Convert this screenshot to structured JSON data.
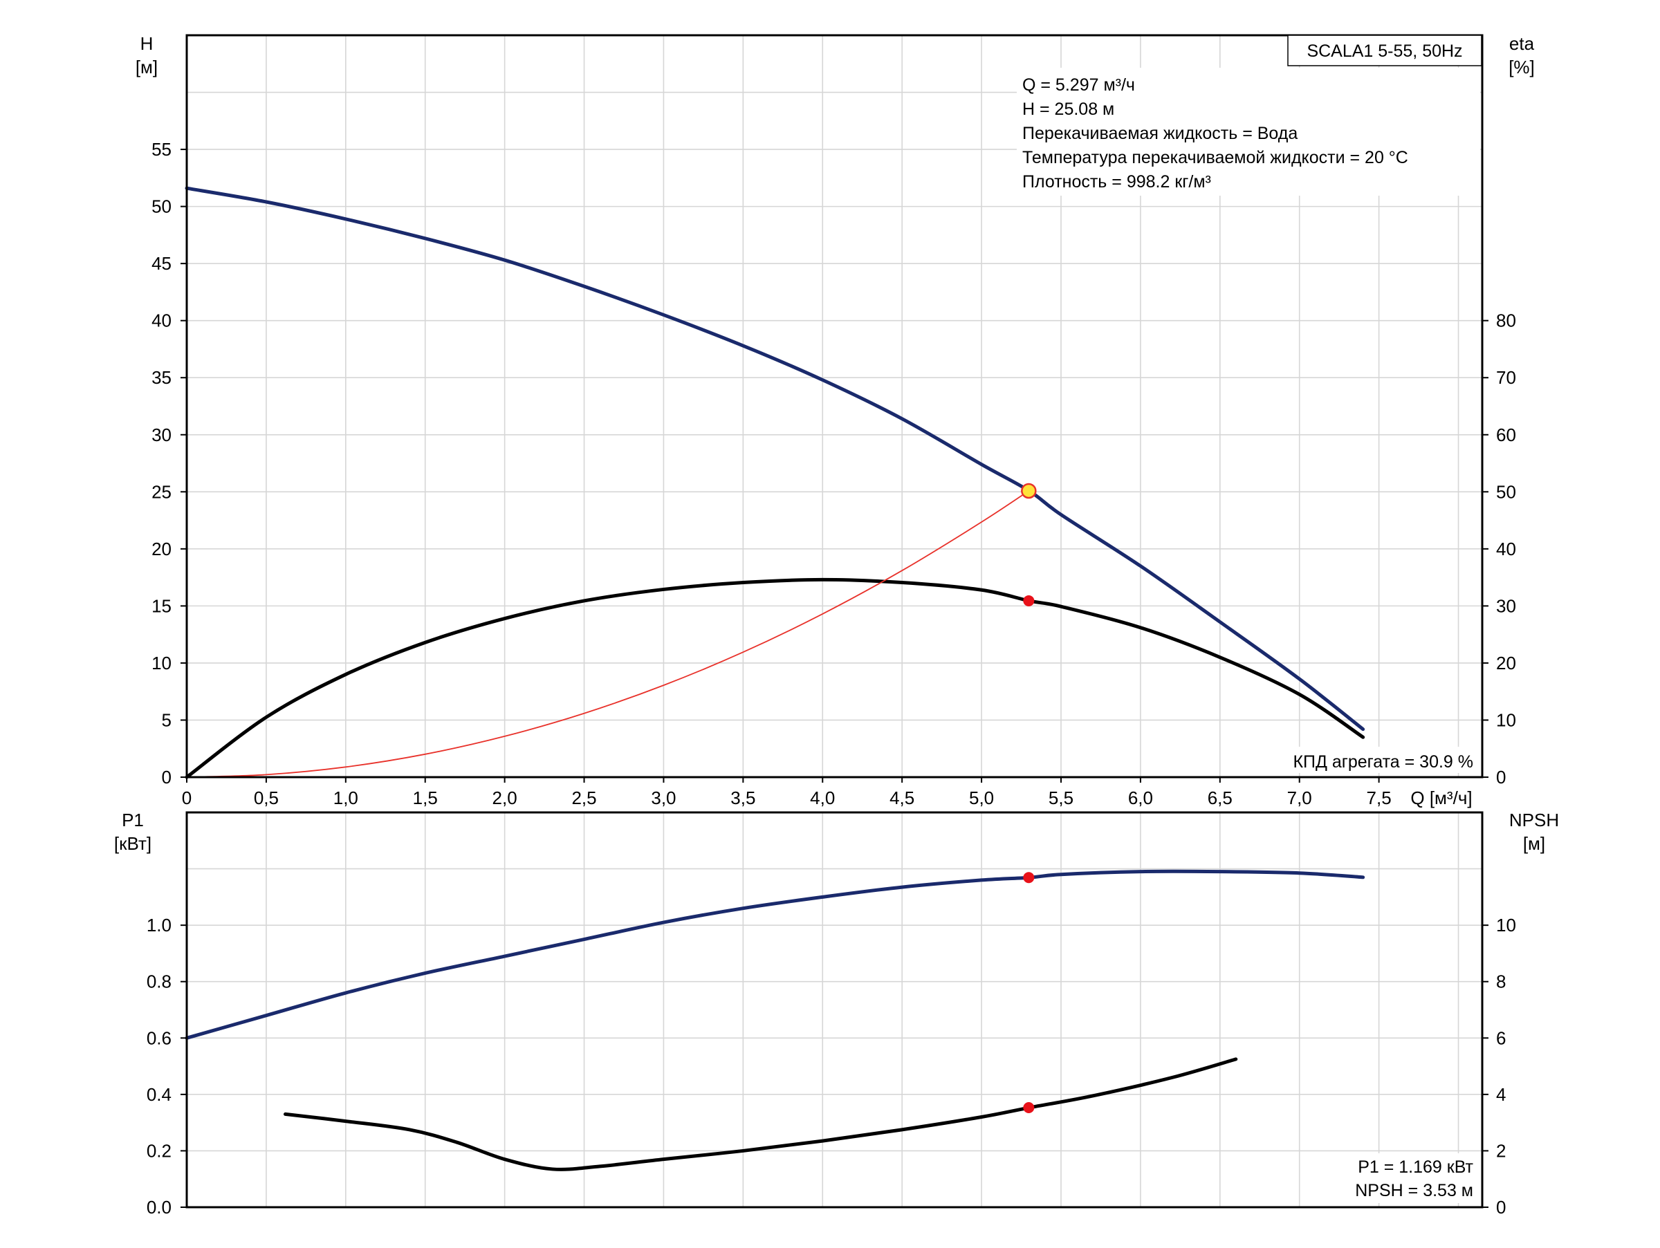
{
  "chart_data": [
    {
      "type": "line",
      "name": "top",
      "title": "SCALA1 5-55, 50Hz",
      "xlabel": "Q [м³/ч]",
      "ylabel_left": [
        "H",
        "[м]"
      ],
      "ylabel_right": [
        "eta",
        "[%]"
      ],
      "xlim": [
        0,
        8.15
      ],
      "ylim_left": [
        0,
        65
      ],
      "ylim_right": [
        0,
        130
      ],
      "grid": true,
      "x_ticks": [
        "0",
        "0,5",
        "1,0",
        "1,5",
        "2,0",
        "2,5",
        "3,0",
        "3,5",
        "4,0",
        "4,5",
        "5,0",
        "5,5",
        "6,0",
        "6,5",
        "7,0",
        "7,5"
      ],
      "x_tick_values": [
        0,
        0.5,
        1.0,
        1.5,
        2.0,
        2.5,
        3.0,
        3.5,
        4.0,
        4.5,
        5.0,
        5.5,
        6.0,
        6.5,
        7.0,
        7.5
      ],
      "y_left_ticks": [
        "0",
        "5",
        "10",
        "15",
        "20",
        "25",
        "30",
        "35",
        "40",
        "45",
        "50",
        "55"
      ],
      "y_left_tick_values": [
        0,
        5,
        10,
        15,
        20,
        25,
        30,
        35,
        40,
        45,
        50,
        55
      ],
      "y_right_ticks": [
        "0",
        "10",
        "20",
        "30",
        "40",
        "50",
        "60",
        "70",
        "80"
      ],
      "y_right_tick_values": [
        0,
        10,
        20,
        30,
        40,
        50,
        60,
        70,
        80
      ],
      "info_lines": [
        "Q = 5.297 м³/ч",
        "H = 25.08 м",
        "Перекачиваемая жидкость = Вода",
        "Температура перекачиваемой жидкости = 20 °C",
        "Плотность = 998.2 кг/м³"
      ],
      "efficiency_label": "КПД агрегата = 30.9 %",
      "series": [
        {
          "name": "H",
          "axis": "left",
          "color": "#1a2a6c",
          "x": [
            0,
            0.5,
            1.0,
            1.5,
            2.0,
            2.5,
            3.0,
            3.5,
            4.0,
            4.5,
            5.0,
            5.3,
            5.5,
            6.0,
            6.5,
            7.0,
            7.4
          ],
          "y": [
            51.6,
            50.4,
            48.9,
            47.2,
            45.3,
            43.0,
            40.5,
            37.8,
            34.8,
            31.4,
            27.4,
            25.08,
            23.0,
            18.5,
            13.6,
            8.6,
            4.2
          ]
        },
        {
          "name": "eta",
          "axis": "right",
          "color": "#000000",
          "x": [
            0,
            0.5,
            1.0,
            1.5,
            2.0,
            2.5,
            3.0,
            3.5,
            4.0,
            4.5,
            5.0,
            5.3,
            5.5,
            6.0,
            6.5,
            7.0,
            7.4
          ],
          "y": [
            0,
            10.5,
            18.0,
            23.6,
            27.8,
            30.9,
            32.9,
            34.1,
            34.6,
            34.1,
            32.8,
            30.9,
            29.9,
            26.2,
            21.0,
            14.5,
            7.0
          ]
        },
        {
          "name": "system",
          "axis": "left",
          "color": "#e8312a",
          "x": [
            0,
            0.5,
            1.0,
            1.5,
            2.0,
            2.5,
            3.0,
            3.5,
            4.0,
            4.5,
            5.0,
            5.297
          ],
          "y": [
            0,
            0.22,
            0.89,
            2.01,
            3.58,
            5.59,
            8.05,
            10.95,
            14.3,
            18.1,
            22.35,
            25.08
          ]
        }
      ],
      "duty_point": {
        "x": 5.297,
        "H": 25.08,
        "eta": 30.9
      }
    },
    {
      "type": "line",
      "name": "bottom",
      "ylabel_left": [
        "P1",
        "[кВт]"
      ],
      "ylabel_right": [
        "NPSH",
        "[м]"
      ],
      "xlim": [
        0,
        8.15
      ],
      "ylim_left": [
        0,
        1.4
      ],
      "ylim_right": [
        0,
        14
      ],
      "grid": true,
      "y_left_ticks": [
        "0.0",
        "0.2",
        "0.4",
        "0.6",
        "0.8",
        "1.0"
      ],
      "y_left_tick_values": [
        0,
        0.2,
        0.4,
        0.6,
        0.8,
        1.0
      ],
      "y_right_ticks": [
        "0",
        "2",
        "4",
        "6",
        "8",
        "10"
      ],
      "y_right_tick_values": [
        0,
        2,
        4,
        6,
        8,
        10
      ],
      "result_lines": [
        "P1 = 1.169 кВт",
        "NPSH = 3.53 м"
      ],
      "series": [
        {
          "name": "P1",
          "axis": "left",
          "color": "#1a2a6c",
          "x": [
            0,
            0.5,
            1.0,
            1.5,
            2.0,
            2.5,
            3.0,
            3.5,
            4.0,
            4.5,
            5.0,
            5.3,
            5.5,
            6.0,
            6.5,
            7.0,
            7.4
          ],
          "y": [
            0.6,
            0.68,
            0.76,
            0.83,
            0.89,
            0.95,
            1.01,
            1.06,
            1.1,
            1.135,
            1.16,
            1.169,
            1.18,
            1.19,
            1.19,
            1.185,
            1.17
          ]
        },
        {
          "name": "NPSH",
          "axis": "right",
          "color": "#000000",
          "x": [
            0.62,
            1.0,
            1.4,
            1.7,
            2.0,
            2.3,
            2.6,
            3.0,
            3.5,
            4.0,
            4.5,
            5.0,
            5.3,
            5.7,
            6.2,
            6.6
          ],
          "y": [
            3.3,
            3.05,
            2.75,
            2.3,
            1.7,
            1.35,
            1.45,
            1.7,
            2.0,
            2.35,
            2.75,
            3.2,
            3.53,
            3.95,
            4.6,
            5.25
          ]
        }
      ],
      "duty_point": {
        "x": 5.297,
        "P1": 1.169,
        "NPSH": 3.53
      }
    }
  ]
}
